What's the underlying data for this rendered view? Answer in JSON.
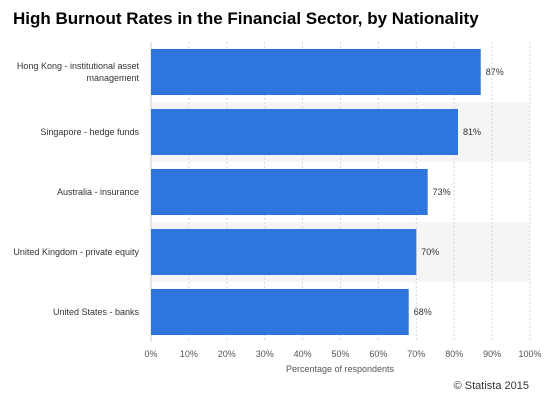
{
  "title": "High Burnout Rates in the Financial Sector, by Nationality",
  "credit": "© Statista 2015",
  "chart_data": {
    "type": "bar",
    "orientation": "horizontal",
    "categories": [
      [
        "Hong Kong - institutional asset",
        "management"
      ],
      [
        "Singapore - hedge funds"
      ],
      [
        "Australia - insurance"
      ],
      [
        "United Kingdom - private equity"
      ],
      [
        "United States - banks"
      ]
    ],
    "values": [
      87,
      81,
      73,
      70,
      68
    ],
    "value_labels": [
      "87%",
      "81%",
      "73%",
      "70%",
      "68%"
    ],
    "xlabel": "Percentage of respondents",
    "ylabel": "",
    "xlim": [
      0,
      100
    ],
    "x_ticks": [
      "0%",
      "10%",
      "20%",
      "30%",
      "40%",
      "50%",
      "60%",
      "70%",
      "80%",
      "90%",
      "100%"
    ],
    "bar_color": "#2e75de",
    "band_color": "#f5f5f5",
    "grid": true,
    "legend": false
  }
}
